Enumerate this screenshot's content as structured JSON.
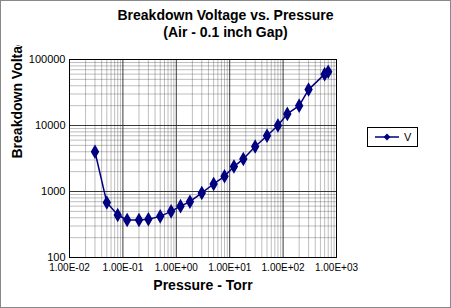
{
  "chart_data": {
    "type": "line",
    "title": "Breakdown Voltage vs. Pressure",
    "subtitle": "(Air - 0.1 inch Gap)",
    "x_label": "Pressure - Torr",
    "y_label": "Breakdown Voltage",
    "x": [
      0.03,
      0.05,
      0.08,
      0.12,
      0.2,
      0.3,
      0.5,
      0.8,
      1.2,
      1.8,
      3,
      5,
      8,
      12,
      18,
      30,
      50,
      80,
      120,
      200,
      300,
      600,
      700
    ],
    "series": [
      {
        "name": "V",
        "color": "#000080",
        "marker": "diamond",
        "line_style": "solid",
        "values": [
          4000,
          680,
          440,
          370,
          370,
          380,
          420,
          500,
          600,
          700,
          950,
          1300,
          1700,
          2400,
          3100,
          4800,
          7000,
          10000,
          15000,
          20000,
          35000,
          60000,
          65000
        ]
      }
    ],
    "log": true,
    "xlim": [
      0.01,
      1000
    ],
    "xticks": [
      {
        "value": 0.01,
        "label": "1.00E-02"
      },
      {
        "value": 0.1,
        "label": "1.00E-01"
      },
      {
        "value": 1,
        "label": "1.00E+00"
      },
      {
        "value": 10,
        "label": "1.00E+01"
      },
      {
        "value": 100,
        "label": "1.00E+02"
      },
      {
        "value": 1000,
        "label": "1.00E+03"
      }
    ],
    "ylim": [
      100,
      100000
    ],
    "yticks": [
      100,
      1000,
      10000,
      100000
    ],
    "grid": true,
    "legend": "right"
  }
}
